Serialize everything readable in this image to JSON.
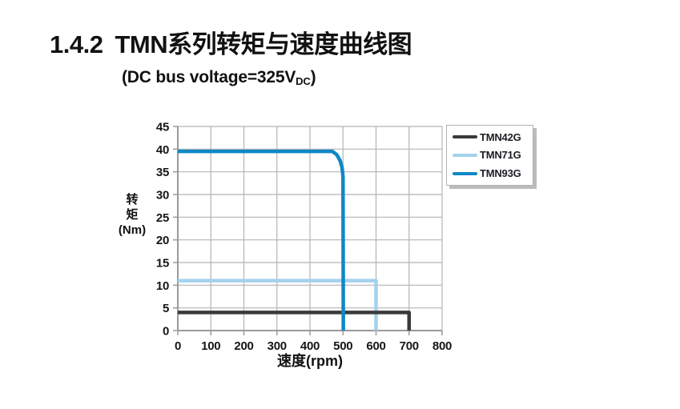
{
  "header": {
    "section_number": "1.4.2",
    "title": "TMN系列转矩与速度曲线图"
  },
  "subtitle": {
    "prefix": "(DC bus voltage=325V",
    "subscript": "DC",
    "suffix": ")"
  },
  "axes": {
    "y_label_chars": [
      "转",
      "矩"
    ],
    "y_label_unit": "(Nm)",
    "x_label": "速度(rpm)"
  },
  "chart_data": {
    "type": "line",
    "title": "TMN系列转矩与速度曲线图",
    "subtitle": "(DC bus voltage=325VDC)",
    "xlabel": "速度(rpm)",
    "ylabel": "转矩(Nm)",
    "xlim": [
      0,
      800
    ],
    "ylim": [
      0,
      45
    ],
    "x_ticks": [
      0,
      100,
      200,
      300,
      400,
      500,
      600,
      700,
      800
    ],
    "y_ticks": [
      0,
      5,
      10,
      15,
      20,
      25,
      30,
      35,
      40,
      45
    ],
    "grid": true,
    "legend_position": "top-right-outside",
    "style": {
      "grid_color": "#b4b4b4",
      "axis_color": "#9a9a9a",
      "tick_label_color": "#161616"
    },
    "z_order": [
      "TMN71G",
      "TMN42G",
      "TMN93G"
    ],
    "series": [
      {
        "name": "TMN42G",
        "color": "#3a3a3c",
        "points": [
          [
            0,
            4
          ],
          [
            700,
            4
          ],
          [
            700,
            0
          ]
        ]
      },
      {
        "name": "TMN71G",
        "color": "#a3d2ec",
        "points": [
          [
            0,
            11
          ],
          [
            600,
            11
          ],
          [
            600,
            0
          ]
        ]
      },
      {
        "name": "TMN93G",
        "color": "#0f87c6",
        "points": [
          [
            0,
            39.5
          ],
          [
            468,
            39.5
          ],
          [
            481,
            38.8
          ],
          [
            491,
            37.5
          ],
          [
            497,
            36
          ],
          [
            500,
            34
          ],
          [
            501,
            0
          ]
        ]
      }
    ]
  }
}
